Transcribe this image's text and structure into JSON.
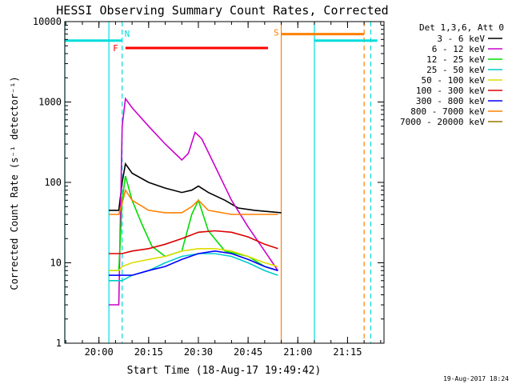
{
  "chart_data": {
    "type": "line",
    "title": "HESSI Observing Summary Count Rates, Corrected",
    "xlabel": "Start Time (18-Aug-17 19:49:42)",
    "ylabel": "Corrected Count Rate (s⁻¹ detector⁻¹)",
    "y_scale": "log",
    "ylim": [
      1,
      10000
    ],
    "xlim": [
      "19:49:42",
      "21:26:00"
    ],
    "x_ticks": [
      "20:00",
      "20:15",
      "20:30",
      "20:45",
      "21:00",
      "21:15"
    ],
    "y_ticks": [
      "1",
      "10",
      "100",
      "1000",
      "10000"
    ],
    "legend_title": "Det 1,3,6, Att 0",
    "legend_position": "right",
    "footer": "19-Aug-2017 18:24",
    "series": [
      {
        "name": "3 - 6 keV",
        "color": "#000000",
        "x": [
          "20:03:00",
          "20:06:00",
          "20:07:00",
          "20:08:00",
          "20:10:00",
          "20:15:00",
          "20:20:00",
          "20:25:00",
          "20:28:00",
          "20:30:00",
          "20:33:00",
          "20:38:00",
          "20:42:00",
          "20:47:00",
          "20:52:00",
          "20:55:00"
        ],
        "y": [
          45,
          45,
          100,
          170,
          130,
          100,
          85,
          75,
          80,
          90,
          75,
          60,
          48,
          45,
          43,
          42
        ]
      },
      {
        "name": "6 - 12 keV",
        "color": "#cc00cc",
        "x": [
          "20:03:00",
          "20:06:00",
          "20:07:00",
          "20:08:00",
          "20:10:00",
          "20:15:00",
          "20:20:00",
          "20:25:00",
          "20:27:00",
          "20:29:00",
          "20:31:00",
          "20:35:00",
          "20:40:00",
          "20:45:00",
          "20:50:00",
          "20:54:00"
        ],
        "y": [
          3,
          3,
          500,
          1100,
          850,
          500,
          300,
          190,
          230,
          420,
          350,
          160,
          60,
          28,
          14,
          8
        ]
      },
      {
        "name": "12 - 25 keV",
        "color": "#00dd00",
        "x": [
          "20:03:00",
          "20:06:00",
          "20:07:00",
          "20:08:00",
          "20:10:00",
          "20:13:00",
          "20:16:00",
          "20:20:00",
          "20:25:00",
          "20:28:00",
          "20:30:00",
          "20:33:00",
          "20:38:00",
          "20:45:00",
          "20:50:00",
          "20:54:00"
        ],
        "y": [
          8,
          8,
          60,
          120,
          60,
          30,
          16,
          12,
          14,
          40,
          60,
          25,
          14,
          12,
          9,
          8
        ]
      },
      {
        "name": "25 - 50 keV",
        "color": "#00cccc",
        "x": [
          "20:03:00",
          "20:06:00",
          "20:07:00",
          "20:10:00",
          "20:15:00",
          "20:20:00",
          "20:25:00",
          "20:30:00",
          "20:35:00",
          "20:40:00",
          "20:45:00",
          "20:50:00",
          "20:54:00"
        ],
        "y": [
          6,
          6,
          6,
          7,
          8,
          10,
          12,
          13,
          13,
          12,
          10,
          8,
          7
        ]
      },
      {
        "name": "50 - 100 keV",
        "color": "#dddd00",
        "x": [
          "20:03:00",
          "20:06:00",
          "20:07:00",
          "20:10:00",
          "20:15:00",
          "20:20:00",
          "20:25:00",
          "20:30:00",
          "20:35:00",
          "20:40:00",
          "20:45:00",
          "20:50:00",
          "20:54:00"
        ],
        "y": [
          8,
          8,
          9,
          10,
          11,
          12,
          14,
          15,
          15,
          14,
          12,
          10,
          9
        ]
      },
      {
        "name": "100 - 300 keV",
        "color": "#dd0000",
        "x": [
          "20:03:00",
          "20:06:00",
          "20:07:00",
          "20:10:00",
          "20:15:00",
          "20:20:00",
          "20:25:00",
          "20:30:00",
          "20:35:00",
          "20:40:00",
          "20:45:00",
          "20:50:00",
          "20:54:00"
        ],
        "y": [
          13,
          13,
          13,
          14,
          15,
          17,
          20,
          24,
          25,
          24,
          21,
          17,
          15
        ]
      },
      {
        "name": "300 - 800 keV",
        "color": "#0000ff",
        "x": [
          "20:03:00",
          "20:06:00",
          "20:07:00",
          "20:10:00",
          "20:15:00",
          "20:20:00",
          "20:25:00",
          "20:30:00",
          "20:35:00",
          "20:40:00",
          "20:45:00",
          "20:50:00",
          "20:54:00"
        ],
        "y": [
          7,
          7,
          7,
          7,
          8,
          9,
          11,
          13,
          14,
          13,
          11,
          9,
          8
        ]
      },
      {
        "name": "800 - 7000 keV",
        "color": "#ff8000",
        "x": [
          "20:03:00",
          "20:06:00",
          "20:07:00",
          "20:08:00",
          "20:10:00",
          "20:15:00",
          "20:20:00",
          "20:25:00",
          "20:28:00",
          "20:30:00",
          "20:33:00",
          "20:40:00",
          "20:45:00",
          "20:50:00",
          "20:54:00"
        ],
        "y": [
          40,
          40,
          55,
          80,
          60,
          45,
          42,
          42,
          50,
          60,
          45,
          40,
          40,
          40,
          40
        ]
      },
      {
        "name": "7000 - 20000 keV",
        "color": "#997700",
        "x": [],
        "y": []
      }
    ],
    "flag_bars": [
      {
        "label": "N",
        "color": "#00dddd",
        "segments": [
          [
            "19:49:42",
            "20:07:00"
          ],
          [
            "21:05:00",
            "21:24:00"
          ]
        ],
        "level": 5800
      },
      {
        "label": "F",
        "color": "#ff0000",
        "segments": [
          [
            "20:08:00",
            "20:51:00"
          ]
        ],
        "level": 4700
      },
      {
        "label": "S",
        "color": "#ff8000",
        "segments": [
          [
            "20:55:00",
            "21:20:00"
          ]
        ],
        "level": 7000
      }
    ],
    "vertical_markers": [
      {
        "time": "19:49:42",
        "color": "#00dddd",
        "style": "solid"
      },
      {
        "time": "20:03:00",
        "color": "#00dddd",
        "style": "solid"
      },
      {
        "time": "20:07:00",
        "color": "#00dddd",
        "style": "dashed"
      },
      {
        "time": "20:55:00",
        "color": "#ff8000",
        "style": "solid"
      },
      {
        "time": "21:05:00",
        "color": "#00dddd",
        "style": "solid"
      },
      {
        "time": "21:20:00",
        "color": "#ff8000",
        "style": "dashed"
      },
      {
        "time": "21:22:00",
        "color": "#00dddd",
        "style": "dashed"
      }
    ]
  }
}
